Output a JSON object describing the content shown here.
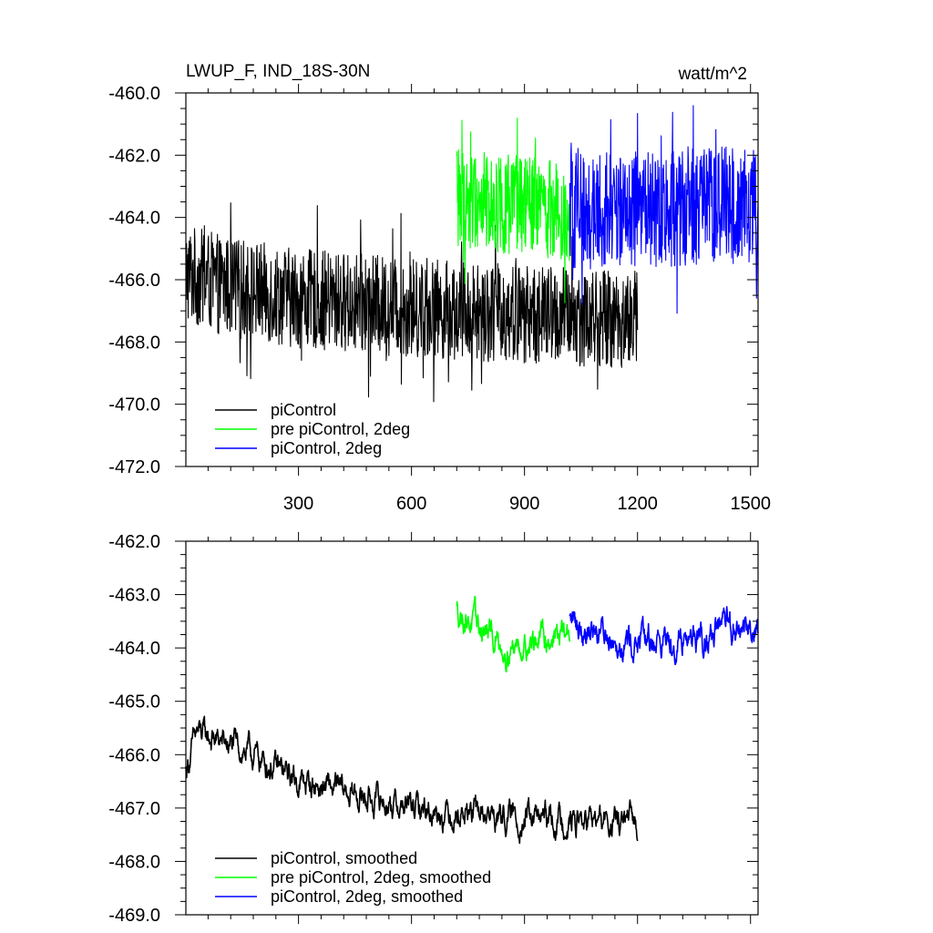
{
  "chart_data": [
    {
      "type": "line",
      "title": "LWUP_F, IND_18S-30N",
      "units": "watt/m^2",
      "xlim": [
        1,
        1520
      ],
      "ylim": [
        -472.0,
        -460.0
      ],
      "xticks": [
        300,
        600,
        900,
        1200,
        1500
      ],
      "xtick_labels": [
        "300",
        "600",
        "900",
        "1200",
        "1500"
      ],
      "yticks": [
        -472.0,
        -470.0,
        -468.0,
        -466.0,
        -464.0,
        -462.0,
        -460.0
      ],
      "ytick_labels": [
        "-472.0",
        "-470.0",
        "-468.0",
        "-466.0",
        "-464.0",
        "-462.0",
        "-460.0"
      ],
      "legend_position": "bottom-left",
      "series": [
        {
          "name": "piControl",
          "color": "#000000",
          "x_range": [
            1,
            1200
          ],
          "segments": [
            [
              1,
              -465.8
            ],
            [
              100,
              -466.2
            ],
            [
              300,
              -466.6
            ],
            [
              600,
              -466.9
            ],
            [
              900,
              -467.1
            ],
            [
              1200,
              -467.3
            ]
          ],
          "noise_amplitude": 1.6
        },
        {
          "name": "pre piControl, 2deg",
          "color": "#00ff00",
          "x_range": [
            720,
            1020
          ],
          "segments": [
            [
              720,
              -463.4
            ],
            [
              1020,
              -463.8
            ]
          ],
          "noise_amplitude": 1.6
        },
        {
          "name": "piControl, 2deg",
          "color": "#0000ff",
          "x_range": [
            1020,
            1520
          ],
          "segments": [
            [
              1020,
              -463.8
            ],
            [
              1520,
              -463.6
            ]
          ],
          "noise_amplitude": 1.9
        }
      ]
    },
    {
      "type": "line",
      "title": "",
      "xlim": [
        1,
        1520
      ],
      "ylim": [
        -469.0,
        -462.0
      ],
      "xticks": [
        300,
        600,
        900,
        1200,
        1500
      ],
      "yticks": [
        -469.0,
        -468.0,
        -467.0,
        -466.0,
        -465.0,
        -464.0,
        -463.0,
        -462.0
      ],
      "ytick_labels": [
        "-469.0",
        "-468.0",
        "-467.0",
        "-466.0",
        "-465.0",
        "-464.0",
        "-463.0",
        "-462.0"
      ],
      "legend_position": "bottom-left",
      "series": [
        {
          "name": "piControl, smoothed",
          "color": "#000000",
          "x_range": [
            1,
            1200
          ],
          "segments": [
            [
              1,
              -466.3
            ],
            [
              30,
              -465.6
            ],
            [
              150,
              -465.9
            ],
            [
              300,
              -466.5
            ],
            [
              600,
              -467.0
            ],
            [
              900,
              -467.2
            ],
            [
              1200,
              -467.3
            ]
          ],
          "noise_amplitude": 0.45
        },
        {
          "name": "pre piControl, 2deg, smoothed",
          "color": "#00ff00",
          "x_range": [
            720,
            1020
          ],
          "segments": [
            [
              720,
              -463.3
            ],
            [
              850,
              -464.0
            ],
            [
              1020,
              -463.7
            ]
          ],
          "noise_amplitude": 0.45
        },
        {
          "name": "piControl, 2deg, smoothed",
          "color": "#0000ff",
          "x_range": [
            1020,
            1520
          ],
          "segments": [
            [
              1020,
              -463.5
            ],
            [
              1200,
              -463.9
            ],
            [
              1520,
              -463.6
            ]
          ],
          "noise_amplitude": 0.5
        }
      ]
    }
  ]
}
